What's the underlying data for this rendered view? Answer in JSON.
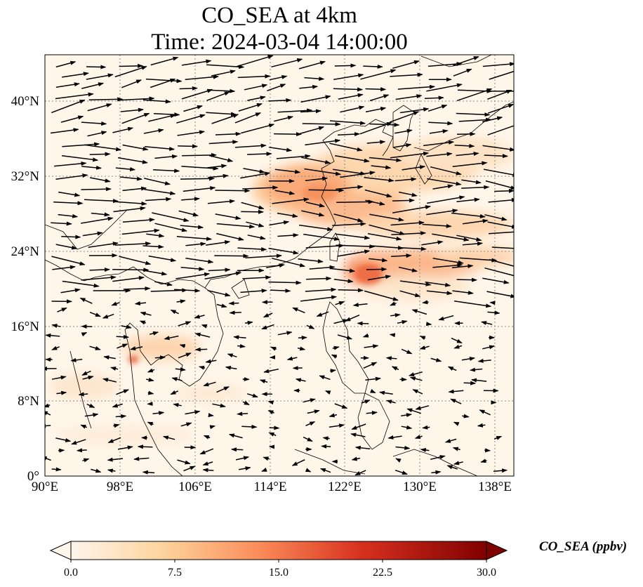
{
  "title": {
    "line1": "CO_SEA at 4km",
    "line2": "Time: 2024-03-04 14:00:00"
  },
  "map": {
    "lon_range": [
      90,
      140
    ],
    "lat_range": [
      0,
      45
    ],
    "lon_ticks": [
      "90°E",
      "98°E",
      "106°E",
      "114°E",
      "122°E",
      "130°E",
      "138°E"
    ],
    "lat_ticks": [
      "0°",
      "8°N",
      "16°N",
      "24°N",
      "32°N",
      "40°N"
    ],
    "gridlines": "dotted"
  },
  "colorbar": {
    "label": "CO_SEA (ppbv)",
    "ticks": [
      "0.0",
      "7.5",
      "15.0",
      "22.5",
      "30.0"
    ],
    "range": [
      0,
      30
    ],
    "extend": "both",
    "colormap": [
      "#fff5eb",
      "#fdd0a2",
      "#fd8d3c",
      "#d94801",
      "#8c2d04",
      "#7f0000"
    ]
  }
}
